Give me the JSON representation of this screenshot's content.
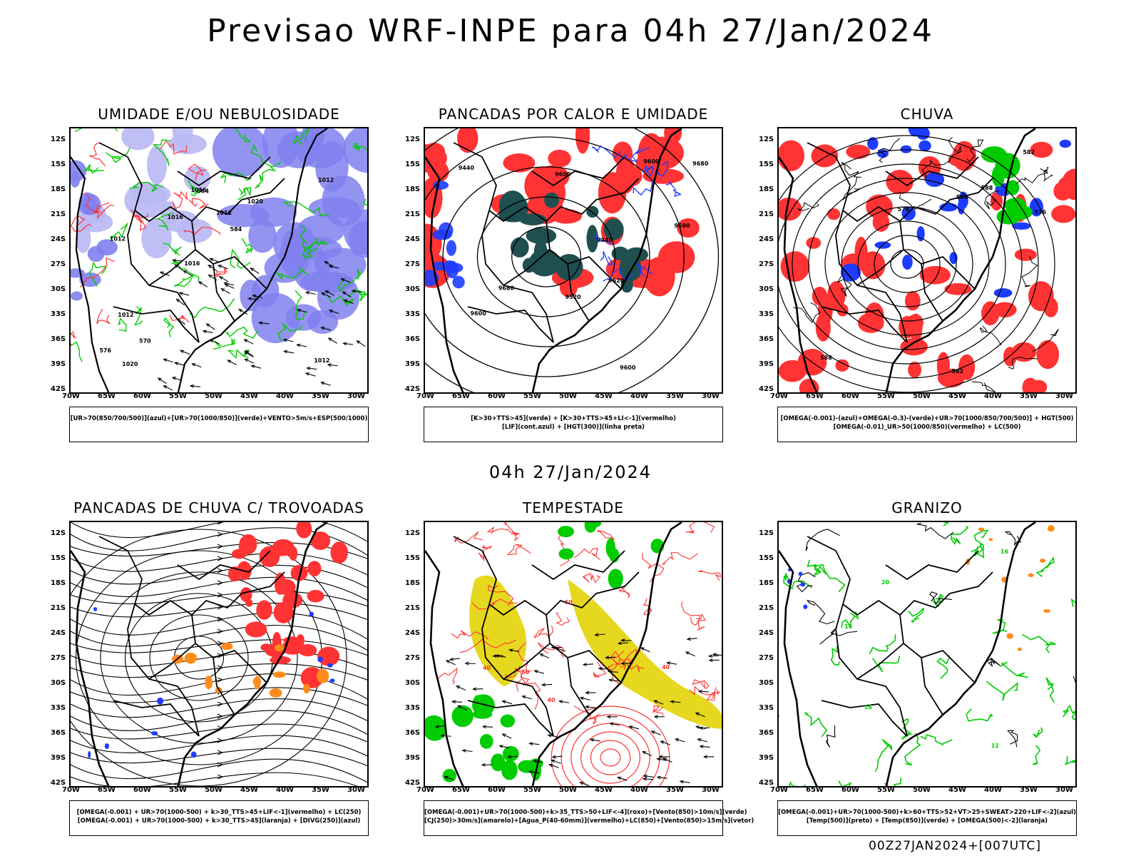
{
  "main_title": "Previsao WRF-INPE  para 04h 27/Jan/2024",
  "mid_title": "04h 27/Jan/2024",
  "footer": "00Z27JAN2024+[007UTC]",
  "lat_labels": [
    "12S",
    "15S",
    "18S",
    "21S",
    "24S",
    "27S",
    "30S",
    "33S",
    "36S",
    "39S",
    "42S"
  ],
  "lon_labels": [
    "70W",
    "65W",
    "60W",
    "55W",
    "50W",
    "45W",
    "40W",
    "35W",
    "30W"
  ],
  "colors": {
    "blue": "#1e3cff",
    "lavender": "#8080f0",
    "green": "#00cc00",
    "red": "#ff3333",
    "orange": "#ff8c1a",
    "yellow": "#e6d81e",
    "darkteal": "#1f4f4f",
    "black": "#000000"
  },
  "panels": [
    {
      "title": "UMIDADE E/OU NEBULOSIDADE",
      "legend": [
        "[UR>70(850/700/500)](azul)+[UR>70(1000/850)](verde)+VENTO>5m/s+ESP(500/1000)"
      ],
      "contour_labels": [
        "1012",
        "1012",
        "1012",
        "1016",
        "1020",
        "1020",
        "1016",
        "1012",
        "1012",
        "1016",
        "576",
        "570",
        "564",
        "584"
      ]
    },
    {
      "title": "PANCADAS POR CALOR E UMIDADE",
      "legend": [
        "[K>30+TTS>45](verde) + [K>30+TTS>45+LI<-1](vermelho)",
        "[LIF](cont.azul) + [HGT(300)](linha preta)"
      ],
      "contour_labels": [
        "9680",
        "9600",
        "9520",
        "9440",
        "9440",
        "9600",
        "9680",
        "9600",
        "9520",
        "9600",
        "9680"
      ]
    },
    {
      "title": "CHUVA",
      "legend": [
        "[OMEGA(-0.001)-(azul)+OMEGA(-0.3)-(verde)+UR>70(1000/850/700/500)] + HGT(500)",
        "[OMEGA(-0.01)_UR>50(1000/850)(vermelho) + LC(500)"
      ],
      "contour_labels": [
        "582",
        "576",
        "576",
        "582",
        "588",
        "588",
        "588"
      ]
    },
    {
      "title": "PANCADAS DE CHUVA C/ TROVOADAS",
      "legend": [
        "[OMEGA(-0.001) + UR>70(1000-500) + k>30_TTS>45+LIF<-1](vermelho) + LC(250)",
        "[OMEGA(-0.001) + UR>70(1000-500) + k>30_TTS>45](laranja) + [DIVG(250)](azul)"
      ],
      "contour_labels": []
    },
    {
      "title": "TEMPESTADE",
      "legend": [
        "[OMEGA(-0.001)+UR>70(1000-500)+k>35_TTS>50+LIF<-4](roxo)+[Vento(850)>10m/s](verde)",
        "[CJ(250)>30m/s](amarelo)+[Agua_P(40-60mm)](vermelho)+LC(850)+[Vento(850)>15m/s](vetor)"
      ],
      "contour_labels": [
        "40",
        "50",
        "40",
        "50",
        "40"
      ]
    },
    {
      "title": "GRANIZO",
      "legend": [
        "[OMEGA(-0.001)+UR>70(1000-500)+k>60+TTS>52+VT>25+SWEAT>220+LIF<-2](azul)",
        "[Temp(500)](preto) + [Temp(850)](verde) + [OMEGA(500)<-2](laranja)"
      ],
      "contour_labels": [
        "16",
        "16",
        "20",
        "12",
        "16"
      ]
    }
  ]
}
